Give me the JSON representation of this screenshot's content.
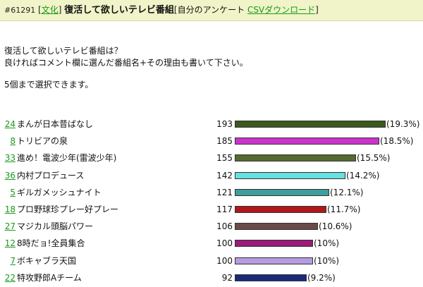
{
  "header": {
    "id": "#61291",
    "category_open": "[",
    "category": "文化",
    "category_close": "]",
    "title": "復活して欲しいテレビ番組",
    "author_open": "[",
    "author": "自分のアンケート",
    "csv_link": "CSVダウンロード",
    "author_close": "]"
  },
  "intro": {
    "line1": "復活して欲しいテレビ番組は？",
    "line2": "良ければコメント欄に選んだ番組名+その理由も書いて下さい。",
    "line3": "5個まで選択できます。"
  },
  "chart_data": {
    "type": "bar",
    "max_count": 193,
    "rows": [
      {
        "num": "24",
        "label": "まんが日本昔ばなし",
        "count": 193,
        "pct": "(19.3%)",
        "color": "#3b5a1c"
      },
      {
        "num": "8",
        "label": "トリビアの泉",
        "count": 185,
        "pct": "(18.5%)",
        "color": "#cc33cc"
      },
      {
        "num": "33",
        "label": "進め！電波少年(雷波少年)",
        "count": 155,
        "pct": "(15.5%)",
        "color": "#556b2f"
      },
      {
        "num": "36",
        "label": "内村プロデュース",
        "count": 142,
        "pct": "(14.2%)",
        "color": "#66e0e0"
      },
      {
        "num": "5",
        "label": "ギルガメッシュナイト",
        "count": 121,
        "pct": "(12.1%)",
        "color": "#3d9e9e"
      },
      {
        "num": "18",
        "label": "プロ野球珍プレー好プレー",
        "count": 117,
        "pct": "(11.7%)",
        "color": "#b01818"
      },
      {
        "num": "27",
        "label": "マジカル頭脳パワー",
        "count": 106,
        "pct": "(10.6%)",
        "color": "#6b4a4a"
      },
      {
        "num": "12",
        "label": "8時だョ!全員集合",
        "count": 100,
        "pct": "(10%)",
        "color": "#9b1a7a"
      },
      {
        "num": "7",
        "label": "ボキャブラ天国",
        "count": 100,
        "pct": "(10%)",
        "color": "#b59be0"
      },
      {
        "num": "22",
        "label": "特攻野郎Aチーム",
        "count": 92,
        "pct": "(9.2%)",
        "color": "#1a2a7a"
      }
    ]
  }
}
